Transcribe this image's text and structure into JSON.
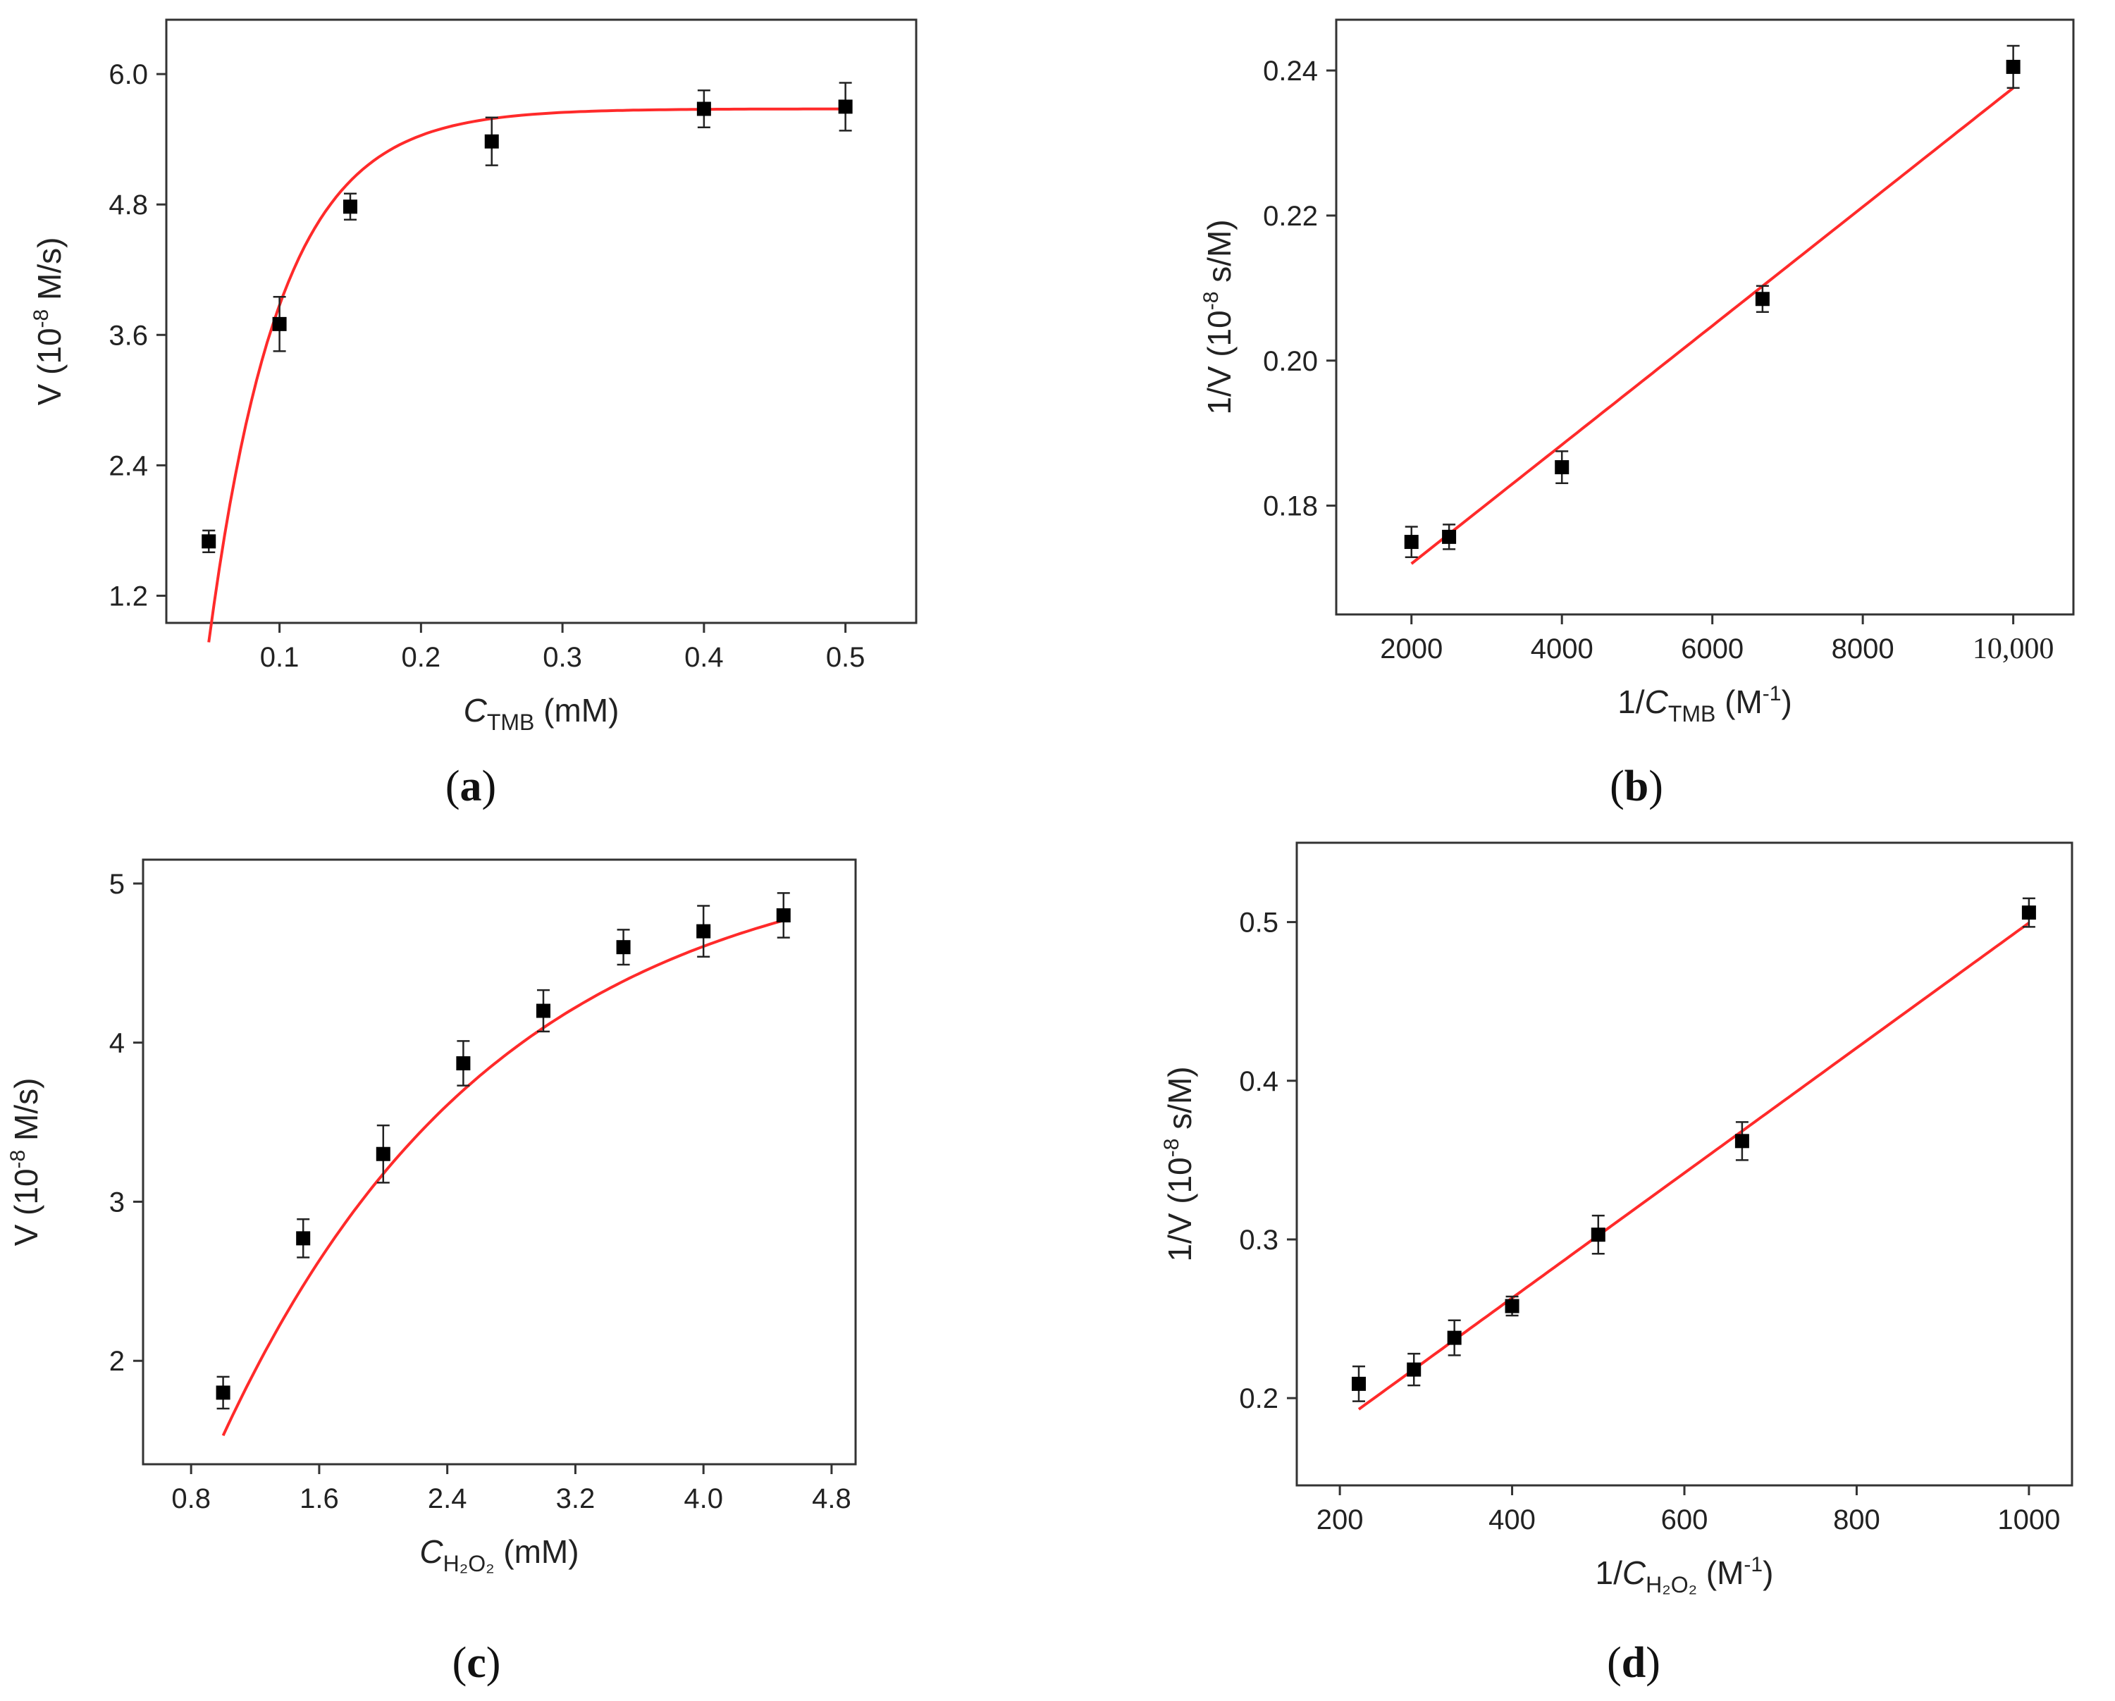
{
  "chart_data": [
    {
      "type": "scatter",
      "panel": "(a)",
      "panel_letter": "a",
      "xlabel": {
        "italic": "C",
        "sub": "TMB",
        "tail": " (mM)"
      },
      "ylabel": {
        "pre": "V (10",
        "sup": "-8",
        "post": " M/s)"
      },
      "xlim": [
        0.02,
        0.55
      ],
      "ylim": [
        0.95,
        6.5
      ],
      "xticks": [
        0.1,
        0.2,
        0.3,
        0.4,
        0.5
      ],
      "xtick_labels": [
        "0.1",
        "0.2",
        "0.3",
        "0.4",
        "0.5"
      ],
      "yticks": [
        1.2,
        2.4,
        3.6,
        4.8,
        6.0
      ],
      "ytick_labels": [
        "1.2",
        "2.4",
        "3.6",
        "4.8",
        "6.0"
      ],
      "x": [
        0.05,
        0.1,
        0.15,
        0.25,
        0.4,
        0.5
      ],
      "y": [
        1.7,
        3.7,
        4.78,
        5.38,
        5.68,
        5.7
      ],
      "yerr": [
        0.1,
        0.25,
        0.12,
        0.22,
        0.17,
        0.22
      ],
      "fit": {
        "kind": "exponential",
        "a": 5.68,
        "b": 20.0,
        "x0": 0.0427,
        "xmin": 0.05,
        "xmax": 0.5
      },
      "series_color": "#000000",
      "fit_color": "#ff2a2a"
    },
    {
      "type": "scatter",
      "panel": "(b)",
      "panel_letter": "b",
      "xlabel": {
        "pre": "1/",
        "italic": "C",
        "sub": "TMB",
        "tail": " (M",
        "sup": "-1",
        "close": ")"
      },
      "ylabel": {
        "pre": "1/V (10",
        "sup": "-8",
        "post": " s/M)"
      },
      "xlim": [
        1000,
        10800
      ],
      "ylim": [
        0.165,
        0.247
      ],
      "xticks": [
        2000,
        4000,
        6000,
        8000,
        10000
      ],
      "xtick_labels": [
        "2000",
        "4000",
        "6000",
        "8000",
        "10,000"
      ],
      "yticks": [
        0.18,
        0.2,
        0.22,
        0.24
      ],
      "ytick_labels": [
        "0.18",
        "0.20",
        "0.22",
        "0.24"
      ],
      "x": [
        2000,
        2500,
        4000,
        6667,
        10000
      ],
      "y": [
        0.175,
        0.1757,
        0.1853,
        0.2085,
        0.2405
      ],
      "yerr": [
        0.0021,
        0.0017,
        0.0022,
        0.0018,
        0.0029
      ],
      "fit": {
        "kind": "linear",
        "slope": 8.2e-06,
        "intercept": 0.1556,
        "xmin": 2000,
        "xmax": 10000
      },
      "series_color": "#000000",
      "fit_color": "#ff2a2a"
    },
    {
      "type": "scatter",
      "panel": "(c)",
      "panel_letter": "c",
      "xlabel": {
        "italic": "C",
        "sub": "H₂O₂",
        "tail": " (mM)"
      },
      "ylabel": {
        "pre": "V (10",
        "sup": "-8",
        "post": " M/s)"
      },
      "xlim": [
        0.5,
        4.95
      ],
      "ylim": [
        1.35,
        5.15
      ],
      "xticks": [
        0.8,
        1.6,
        2.4,
        3.2,
        4.0,
        4.8
      ],
      "xtick_labels": [
        "0.8",
        "1.6",
        "2.4",
        "3.2",
        "4.0",
        "4.8"
      ],
      "yticks": [
        2,
        3,
        4,
        5
      ],
      "ytick_labels": [
        "2",
        "3",
        "4",
        "5"
      ],
      "x": [
        1.0,
        1.5,
        2.0,
        2.5,
        3.0,
        3.5,
        4.0,
        4.5
      ],
      "y": [
        1.8,
        2.77,
        3.3,
        3.87,
        4.2,
        4.6,
        4.7,
        4.8
      ],
      "yerr": [
        0.1,
        0.12,
        0.18,
        0.14,
        0.13,
        0.11,
        0.16,
        0.14
      ],
      "fit": {
        "kind": "exponential",
        "a": 5.25,
        "b": 0.584,
        "x0": 0.41,
        "xmin": 1.0,
        "xmax": 4.5
      },
      "series_color": "#000000",
      "fit_color": "#ff2a2a"
    },
    {
      "type": "scatter",
      "panel": "(d)",
      "panel_letter": "d",
      "xlabel": {
        "pre": "1/",
        "italic": "C",
        "sub": "H₂O₂",
        "tail": " (M",
        "sup": "-1",
        "close": ")"
      },
      "ylabel": {
        "pre": "1/V (10",
        "sup": "-8",
        "post": " s/M)"
      },
      "xlim": [
        150,
        1050
      ],
      "ylim": [
        0.145,
        0.55
      ],
      "xticks": [
        200,
        400,
        600,
        800,
        1000
      ],
      "xtick_labels": [
        "200",
        "400",
        "600",
        "800",
        "1000"
      ],
      "yticks": [
        0.2,
        0.3,
        0.4,
        0.5
      ],
      "ytick_labels": [
        "0.2",
        "0.3",
        "0.4",
        "0.5"
      ],
      "x": [
        222,
        286,
        333,
        400,
        500,
        667,
        1000
      ],
      "y": [
        0.209,
        0.218,
        0.238,
        0.258,
        0.303,
        0.362,
        0.506
      ],
      "yerr": [
        0.011,
        0.01,
        0.011,
        0.006,
        0.012,
        0.012,
        0.009
      ],
      "fit": {
        "kind": "linear",
        "slope": 0.000394,
        "intercept": 0.1055,
        "xmin": 222,
        "xmax": 1000
      },
      "series_color": "#000000",
      "fit_color": "#ff2a2a"
    }
  ]
}
